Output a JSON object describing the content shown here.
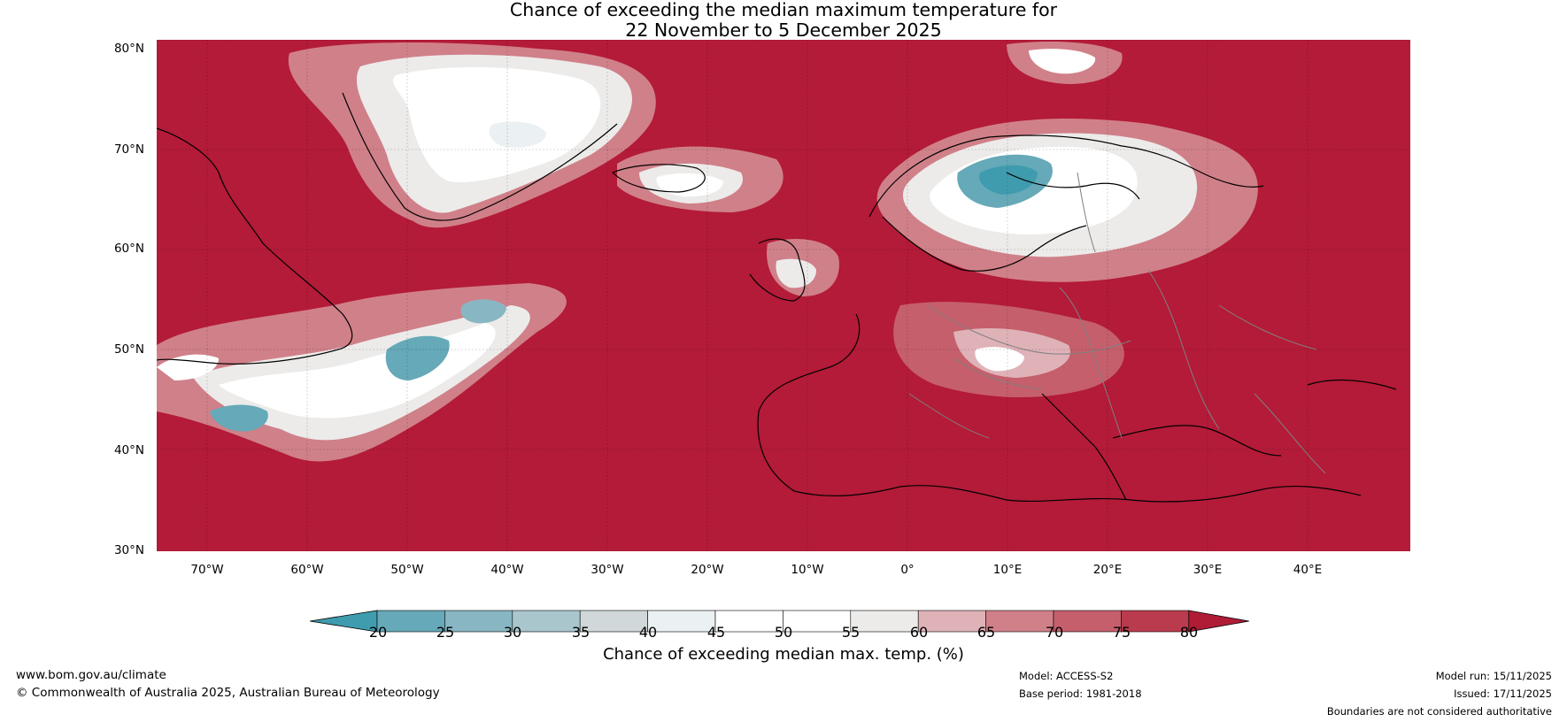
{
  "title": {
    "line1": "Chance of exceeding the median maximum temperature for",
    "line2": "22 November to 5 December 2025"
  },
  "map": {
    "lat_labels": [
      "80°N",
      "70°N",
      "60°N",
      "50°N",
      "40°N",
      "30°N"
    ],
    "lon_labels": [
      "70°W",
      "60°W",
      "50°W",
      "40°W",
      "30°W",
      "20°W",
      "10°W",
      "0°",
      "10°E",
      "20°E",
      "30°E",
      "40°E"
    ],
    "colors": {
      "above_80": "#b01c36",
      "ocean_dominant": "#b31b38",
      "land_coast": "#000000",
      "borders": "#808080"
    }
  },
  "colorbar": {
    "ticks": [
      "20",
      "25",
      "30",
      "35",
      "40",
      "45",
      "50",
      "55",
      "60",
      "65",
      "70",
      "75",
      "80"
    ],
    "colors": [
      "#3f9cae",
      "#66a9b8",
      "#88b6c3",
      "#a9c6cc",
      "#d0d8da",
      "#ebf0f2",
      "#ffffff",
      "#ffffff",
      "#ecebea",
      "#dfb2b8",
      "#d08089",
      "#c55f6c",
      "#bb3b4e",
      "#b01c36"
    ],
    "label": "Chance of exceeding median max. temp. (%)"
  },
  "footer": {
    "url": "www.bom.gov.au/climate",
    "copyright": "© Commonwealth of Australia 2025, Australian Bureau of Meteorology",
    "model": "Model: ACCESS-S2",
    "base_period": "Base period: 1981-2018",
    "model_run": "Model run: 15/11/2025",
    "issued": "Issued: 17/11/2025",
    "disclaimer": "Boundaries are not considered authoritative"
  }
}
